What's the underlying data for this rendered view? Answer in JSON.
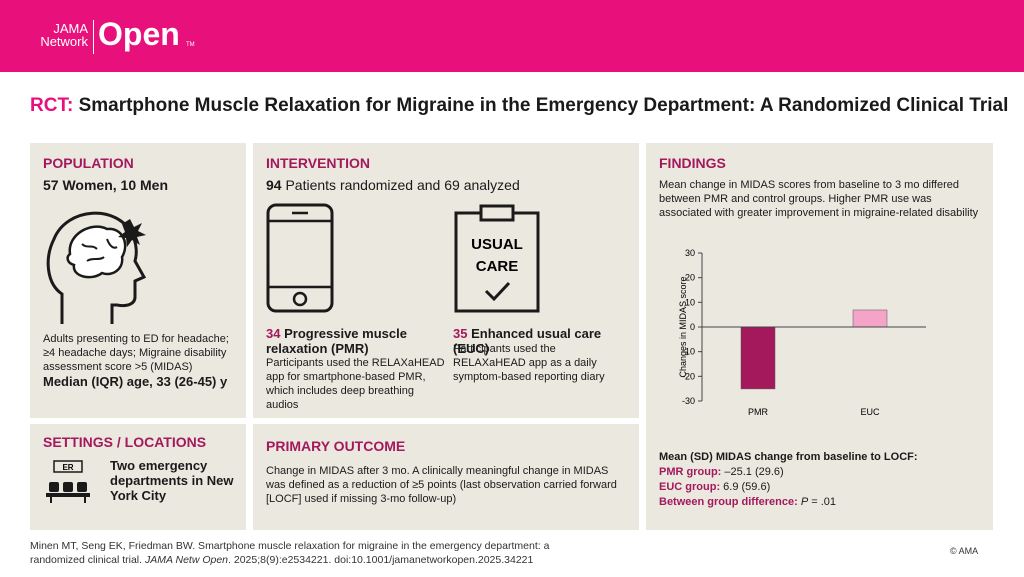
{
  "header": {
    "logo": {
      "jama": "JAMA",
      "network": "Network",
      "open": "Open",
      "tm": "TM"
    }
  },
  "title": {
    "prefix": "RCT:",
    "text": "Smartphone Muscle Relaxation for Migraine in the Emergency Department: A Randomized Clinical Trial"
  },
  "population": {
    "heading": "POPULATION",
    "summary": "57 Women, 10 Men",
    "description": "Adults presenting to ED for headache; ≥4 headache days; Migraine disability assessment score >5 (MIDAS)",
    "age": "Median (IQR) age, 33 (26-45) y"
  },
  "settings": {
    "heading": "SETTINGS / LOCATIONS",
    "icon_text": "ER",
    "text": "Two emergency departments in New York City"
  },
  "intervention": {
    "heading": "INTERVENTION",
    "summary_number": "94",
    "summary_text": "Patients randomized and 69 analyzed",
    "arms": [
      {
        "number": "34",
        "title": "Progressive muscle relaxation (PMR)",
        "description": "Participants used the RELAXaHEAD app for smartphone-based PMR, which includes deep breathing audios"
      },
      {
        "number": "35",
        "title": "Enhanced usual care (EUC)",
        "description": "Participants used the RELAXaHEAD app as a daily symptom-based reporting diary",
        "icon_text": [
          "USUAL",
          "CARE"
        ]
      }
    ]
  },
  "primary_outcome": {
    "heading": "PRIMARY OUTCOME",
    "text": "Change in MIDAS after 3 mo. A clinically meaningful change in MIDAS was defined as a reduction of ≥5 points (last observation carried forward [LOCF] used if missing 3-mo follow-up)"
  },
  "findings": {
    "heading": "FINDINGS",
    "text": "Mean change in MIDAS scores from baseline to 3 mo differed between PMR and control groups. Higher PMR use was associated with greater improvement in migraine-related disability",
    "chart": {
      "type": "bar",
      "categories": [
        "PMR",
        "EUC"
      ],
      "values": [
        -25.1,
        6.9
      ],
      "colors": [
        "#a3195b",
        "#f5a3c7"
      ],
      "y_label": "Changes in MIDAS score",
      "ylim": [
        -30,
        30
      ],
      "yticks": [
        -30,
        -20,
        -10,
        0,
        10,
        20,
        30
      ]
    },
    "results": {
      "heading": "Mean (SD) MIDAS change from baseline to LOCF:",
      "rows": [
        {
          "label": "PMR group:",
          "value": "–25.1 (29.6)"
        },
        {
          "label": "EUC group:",
          "value": "6.9 (59.6)"
        },
        {
          "label": "Between group difference:",
          "value_italic": "P",
          "value": "= .01"
        }
      ]
    }
  },
  "citation": {
    "authors": "Minen MT, Seng EK, Friedman BW. Smartphone muscle relaxation for migraine in the emergency department: a randomized clinical trial.",
    "journal": "JAMA Netw Open",
    "details": ". 2025;8(9):e2534221. doi:10.1001/jamanetworkopen.2025.34221"
  },
  "copyright": "© AMA"
}
